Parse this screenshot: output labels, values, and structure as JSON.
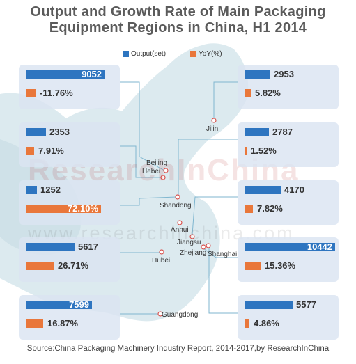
{
  "chart_data": {
    "type": "bar",
    "title": "Output and Growth Rate of Main Packaging Equipment Regions in China, H1 2014",
    "title_lines": [
      "Output and Growth Rate of Main Packaging",
      "Equipment Regions in China, H1 2014"
    ],
    "series": [
      {
        "name": "Output(set)",
        "color": "#2e75c0"
      },
      {
        "name": "YoY(%)",
        "color": "#e9773b"
      }
    ],
    "regions": [
      {
        "name": "",
        "output": 9052,
        "output_label": "9052",
        "yoy": -11.76,
        "yoy_label": "-11.76%"
      },
      {
        "name": "Jilin",
        "output": 2953,
        "output_label": "2953",
        "yoy": 5.82,
        "yoy_label": "5.82%"
      },
      {
        "name": "Beijing",
        "output": 2353,
        "output_label": "2353",
        "yoy": 7.91,
        "yoy_label": "7.91%"
      },
      {
        "name": "Hebei",
        "output": 2787,
        "output_label": "2787",
        "yoy": 1.52,
        "yoy_label": "1.52%"
      },
      {
        "name": "Shandong",
        "output": 1252,
        "output_label": "1252",
        "yoy": 72.1,
        "yoy_label": "72.10%"
      },
      {
        "name": "Jiangsu",
        "output": 4170,
        "output_label": "4170",
        "yoy": 7.82,
        "yoy_label": "7.82%"
      },
      {
        "name": "Hubei",
        "output": 5617,
        "output_label": "5617",
        "yoy": 26.71,
        "yoy_label": "26.71%"
      },
      {
        "name": "Zhejiang",
        "output": 10442,
        "output_label": "10442",
        "yoy": 15.36,
        "yoy_label": "15.36%"
      },
      {
        "name": "Guangdong",
        "output": 7599,
        "output_label": "7599",
        "yoy": 16.87,
        "yoy_label": "16.87%"
      },
      {
        "name": "Shanghai",
        "output": 5577,
        "output_label": "5577",
        "yoy": 4.86,
        "yoy_label": "4.86%"
      }
    ],
    "map_labels": [
      "Jilin",
      "Beijing",
      "Hebei",
      "Shandong",
      "Anhui",
      "Jiangsu",
      "Zhejiang",
      "Shanghai",
      "Hubei",
      "Guangdong"
    ]
  },
  "watermark": {
    "logo": "ResearchInChina",
    "url": "www.researchinchina.com"
  },
  "source": "Source:China Packaging Machinery Industry Report, 2014-2017,by ResearchInChina"
}
